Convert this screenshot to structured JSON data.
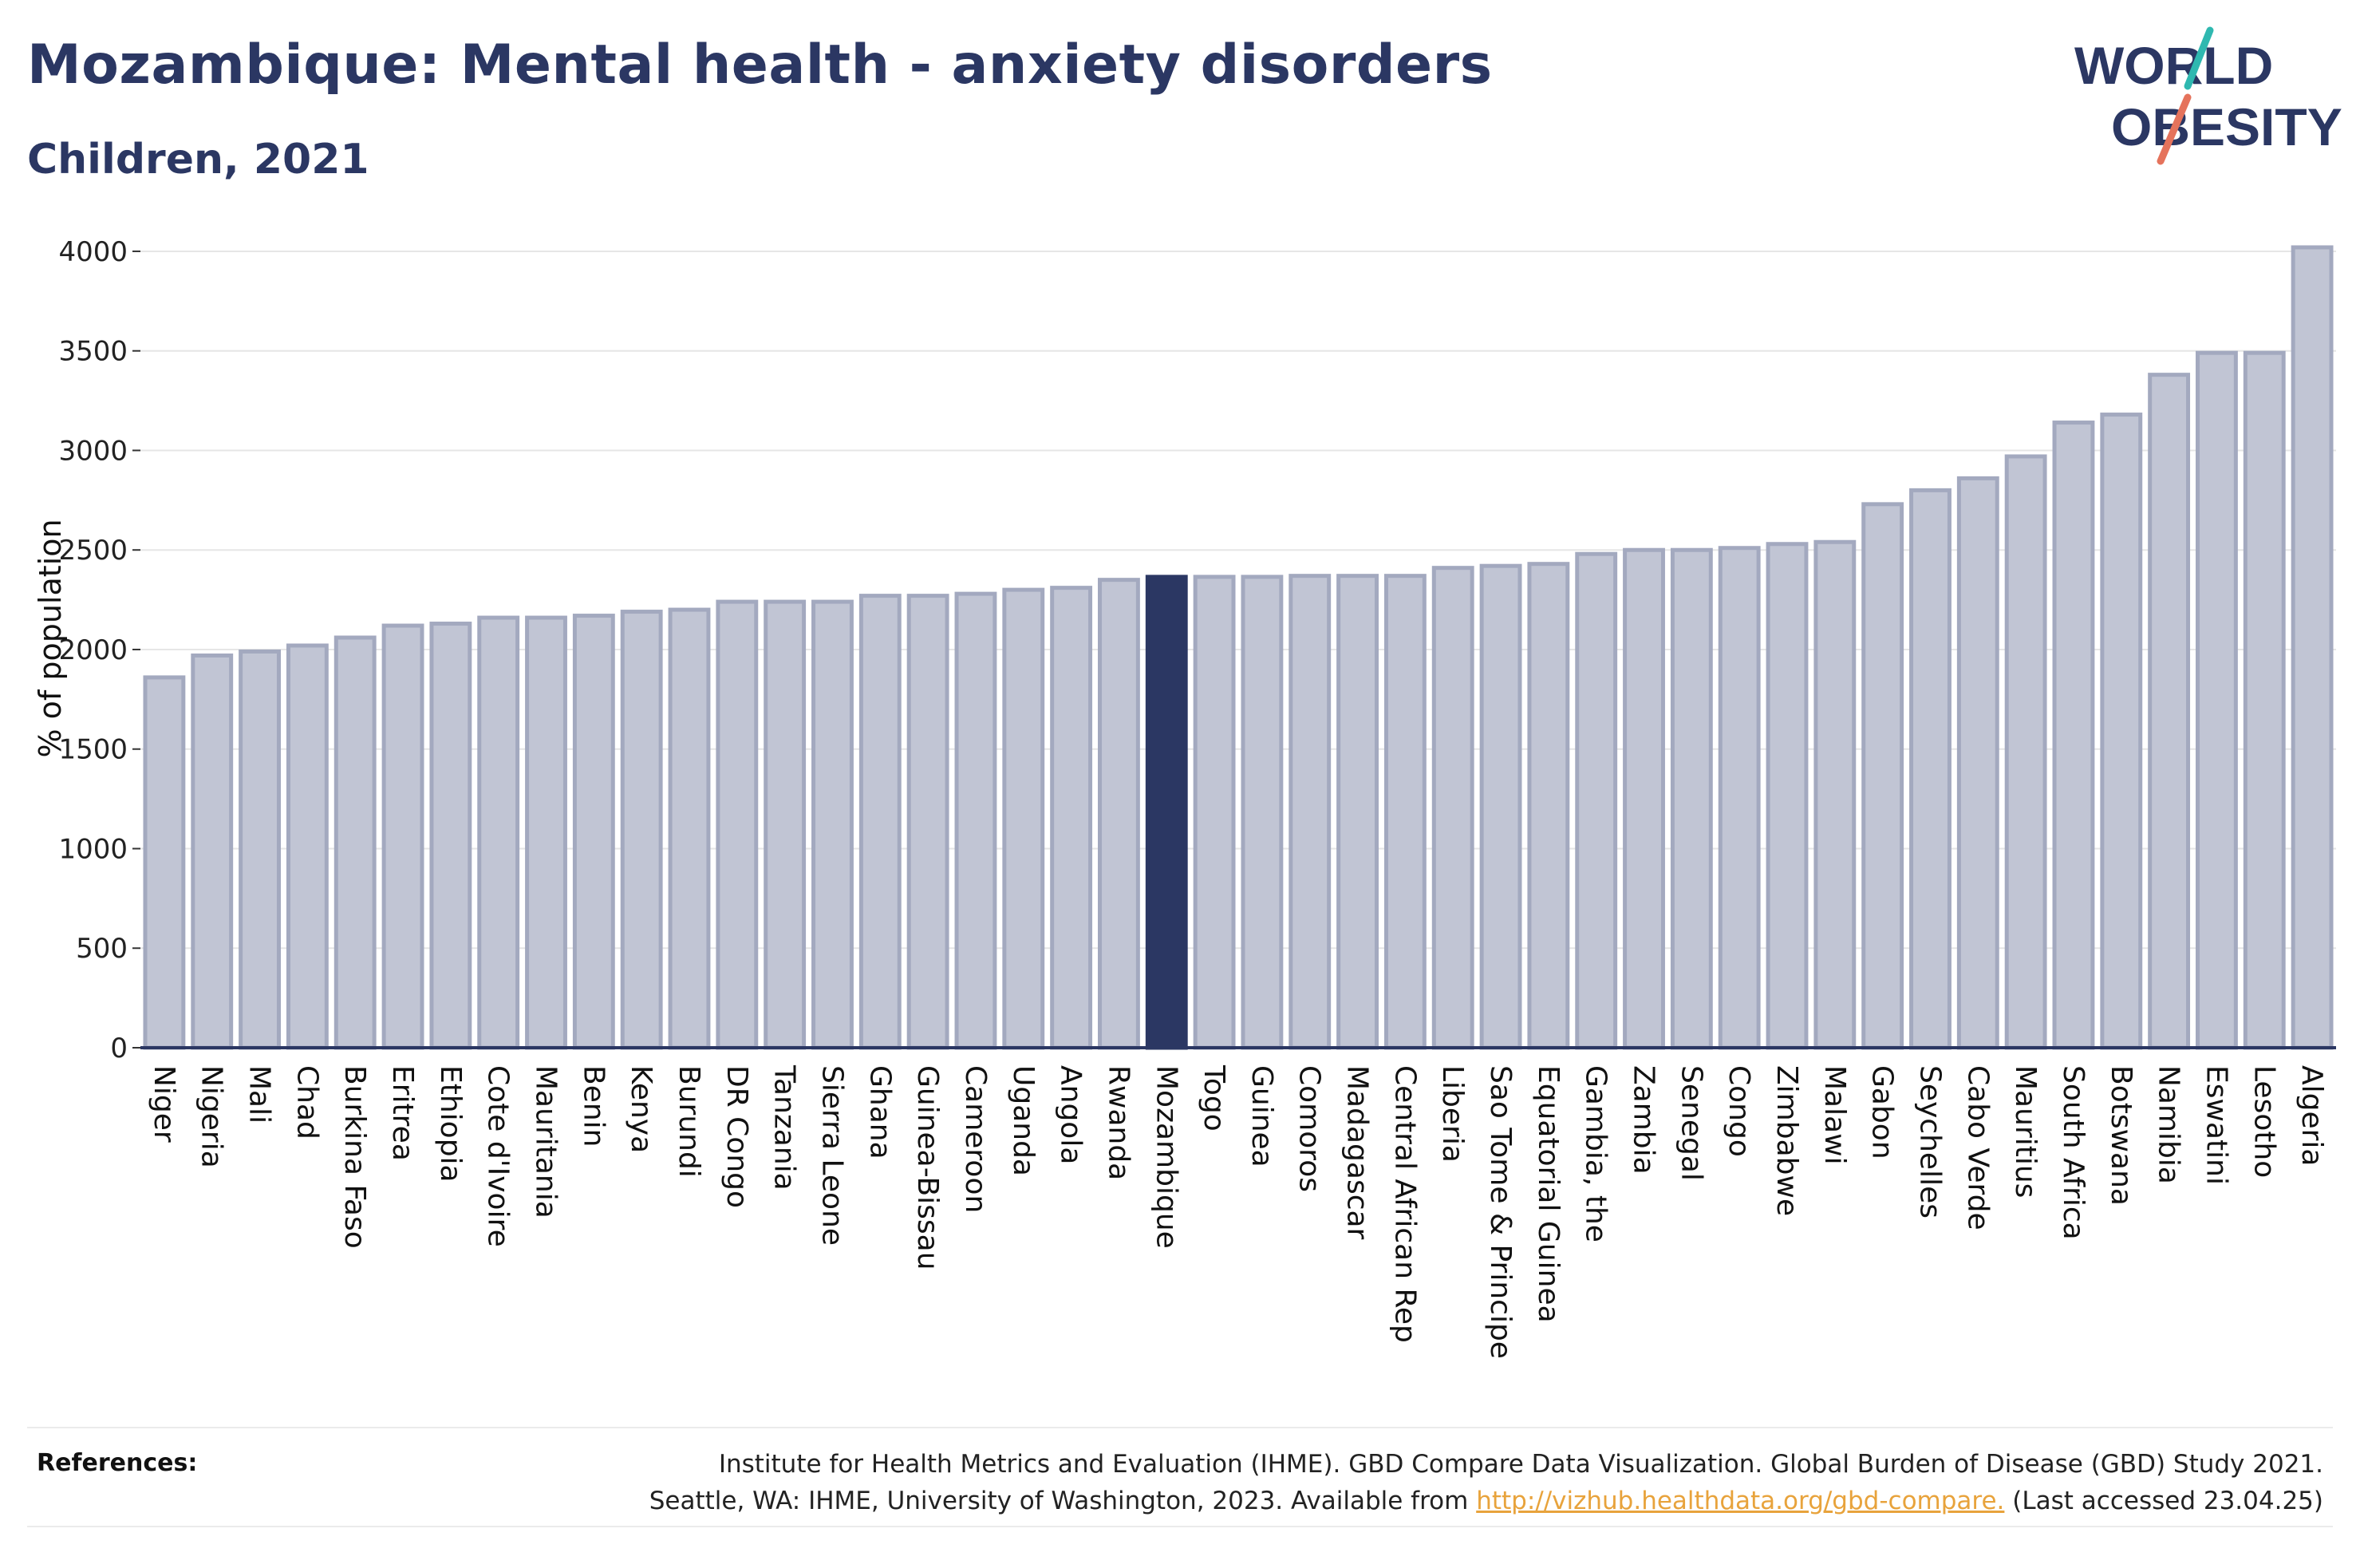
{
  "title": "Mozambique: Mental health - anxiety disorders",
  "subtitle": "Children, 2021",
  "logo": {
    "line1": "WORLD",
    "line2": "OBESITY",
    "slash_colors": [
      "#2fb8b0",
      "#e5735c"
    ]
  },
  "colors": {
    "bar": "#c1c5d4",
    "bar_edge": "#a3a9bf",
    "highlight": "#2b3763",
    "text": "#2b3763",
    "grid": "#e6e6e6"
  },
  "chart_data": {
    "type": "bar",
    "ylabel": "% of population",
    "xlabel": "",
    "ylim": [
      0,
      4100
    ],
    "yticks": [
      0,
      500,
      1000,
      1500,
      2000,
      2500,
      3000,
      3500,
      4000
    ],
    "grid": true,
    "highlight": "Mozambique",
    "categories": [
      "Niger",
      "Nigeria",
      "Mali",
      "Chad",
      "Burkina Faso",
      "Eritrea",
      "Ethiopia",
      "Cote d'Ivoire",
      "Mauritania",
      "Benin",
      "Kenya",
      "Burundi",
      "DR Congo",
      "Tanzania",
      "Sierra Leone",
      "Ghana",
      "Guinea-Bissau",
      "Cameroon",
      "Uganda",
      "Angola",
      "Rwanda",
      "Mozambique",
      "Togo",
      "Guinea",
      "Comoros",
      "Madagascar",
      "Central African Rep",
      "Liberia",
      "Sao Tome & Principe",
      "Equatorial Guinea",
      "Gambia, the",
      "Zambia",
      "Senegal",
      "Congo",
      "Zimbabwe",
      "Malawi",
      "Gabon",
      "Seychelles",
      "Cabo Verde",
      "Mauritius",
      "South Africa",
      "Botswana",
      "Namibia",
      "Eswatini",
      "Lesotho",
      "Algeria"
    ],
    "values": [
      1860,
      1970,
      1990,
      2020,
      2060,
      2120,
      2130,
      2160,
      2160,
      2170,
      2190,
      2200,
      2240,
      2240,
      2240,
      2270,
      2270,
      2280,
      2300,
      2310,
      2350,
      2365,
      2365,
      2365,
      2370,
      2370,
      2370,
      2410,
      2420,
      2430,
      2480,
      2500,
      2500,
      2510,
      2530,
      2540,
      2730,
      2800,
      2860,
      2970,
      3140,
      3180,
      3380,
      3490,
      3490,
      4020
    ]
  },
  "references": {
    "label": "References:",
    "line1": "Institute for Health Metrics and Evaluation (IHME). GBD Compare Data Visualization. Global Burden of Disease (GBD) Study 2021.",
    "line2_pre": "Seattle, WA: IHME, University of Washington, 2023. Available from ",
    "link": "http://vizhub.healthdata.org/gbd-compare.",
    "line2_post": " (Last accessed 23.04.25)"
  }
}
